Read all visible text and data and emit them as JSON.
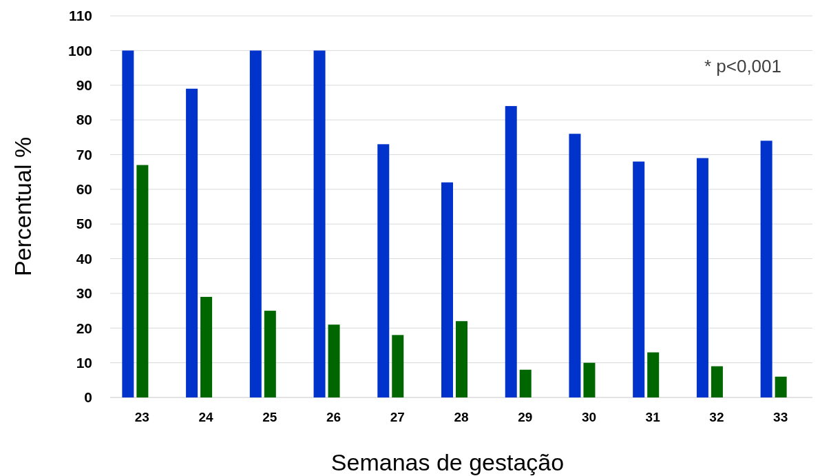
{
  "chart_data": {
    "type": "bar",
    "xlabel": "Semanas de gestação",
    "ylabel": "Percentual %",
    "categories": [
      "23",
      "24",
      "25",
      "26",
      "27",
      "28",
      "29",
      "30",
      "31",
      "32",
      "33"
    ],
    "series": [
      {
        "color": "#0033cc",
        "values": [
          100,
          89,
          100,
          100,
          73,
          62,
          84,
          76,
          68,
          69,
          74
        ]
      },
      {
        "color": "#006600",
        "values": [
          67,
          29,
          25,
          21,
          18,
          22,
          8,
          10,
          13,
          9,
          6
        ]
      }
    ],
    "ylim": [
      0,
      110
    ],
    "yticks": [
      0,
      10,
      20,
      30,
      40,
      50,
      60,
      70,
      80,
      90,
      100,
      110
    ],
    "grid": "y",
    "annotations": [
      "* p<0,001"
    ]
  }
}
